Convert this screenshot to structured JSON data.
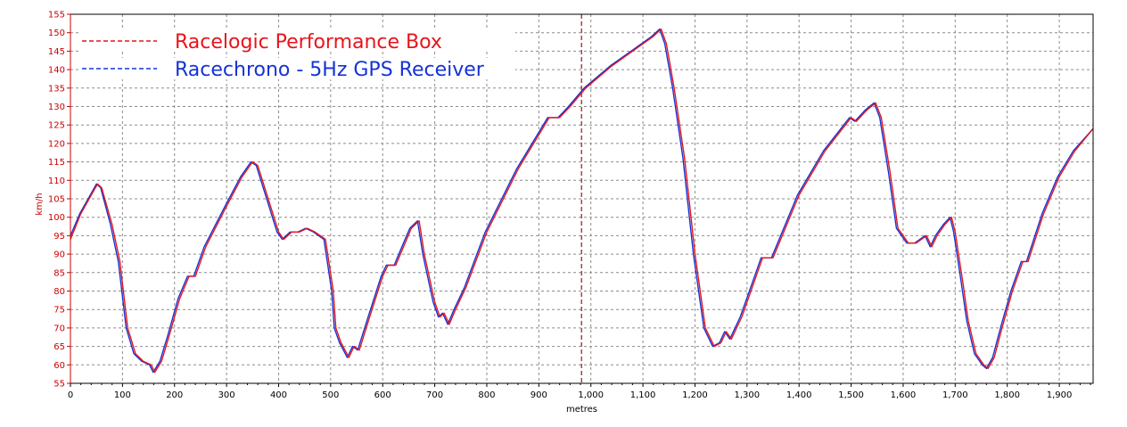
{
  "colors": {
    "red": "#e8141c",
    "blue": "#1533d6",
    "grid": "#8c8c8c",
    "y_axis": "#cc0000",
    "marker": "#8b1a1a",
    "frame": "#000000"
  },
  "chart_data": {
    "type": "line",
    "xlabel": "metres",
    "ylabel": "km/h",
    "xlim": [
      0,
      1965
    ],
    "ylim": [
      55,
      155
    ],
    "x_ticks": [
      0,
      100,
      200,
      300,
      400,
      500,
      600,
      700,
      800,
      900,
      1000,
      1100,
      1200,
      1300,
      1400,
      1500,
      1600,
      1700,
      1800,
      1900
    ],
    "x_tick_labels": [
      "0",
      "100",
      "200",
      "300",
      "400",
      "500",
      "600",
      "700",
      "800",
      "900",
      "1,000",
      "1,100",
      "1,200",
      "1,300",
      "1,400",
      "1,500",
      "1,600",
      "1,700",
      "1,800",
      "1,900"
    ],
    "y_ticks": [
      55,
      60,
      65,
      70,
      75,
      80,
      85,
      90,
      95,
      100,
      105,
      110,
      115,
      120,
      125,
      130,
      135,
      140,
      145,
      150,
      155
    ],
    "grid": true,
    "legend_position": "top-left",
    "marker_x": 982,
    "series": [
      {
        "name": "Racelogic Performance Box",
        "color": "#e8141c",
        "style": "dashed",
        "points": [
          [
            0,
            94
          ],
          [
            20,
            101
          ],
          [
            40,
            106
          ],
          [
            52,
            109
          ],
          [
            60,
            108
          ],
          [
            80,
            98
          ],
          [
            95,
            88
          ],
          [
            110,
            70
          ],
          [
            125,
            63
          ],
          [
            140,
            61
          ],
          [
            155,
            60
          ],
          [
            162,
            58
          ],
          [
            175,
            61
          ],
          [
            190,
            68
          ],
          [
            210,
            78
          ],
          [
            228,
            84
          ],
          [
            240,
            84
          ],
          [
            260,
            92
          ],
          [
            300,
            103
          ],
          [
            330,
            111
          ],
          [
            350,
            115
          ],
          [
            360,
            114
          ],
          [
            380,
            105
          ],
          [
            400,
            96
          ],
          [
            410,
            94
          ],
          [
            425,
            96
          ],
          [
            440,
            96
          ],
          [
            455,
            97
          ],
          [
            470,
            96
          ],
          [
            490,
            94
          ],
          [
            505,
            80
          ],
          [
            510,
            70
          ],
          [
            520,
            66
          ],
          [
            535,
            62
          ],
          [
            545,
            65
          ],
          [
            555,
            64
          ],
          [
            575,
            73
          ],
          [
            600,
            84
          ],
          [
            610,
            87
          ],
          [
            625,
            87
          ],
          [
            640,
            92
          ],
          [
            655,
            97
          ],
          [
            670,
            99
          ],
          [
            680,
            90
          ],
          [
            700,
            77
          ],
          [
            710,
            73
          ],
          [
            718,
            74
          ],
          [
            728,
            71
          ],
          [
            740,
            75
          ],
          [
            760,
            81
          ],
          [
            800,
            96
          ],
          [
            860,
            113
          ],
          [
            920,
            127
          ],
          [
            940,
            127
          ],
          [
            960,
            130
          ],
          [
            990,
            135
          ],
          [
            1040,
            141
          ],
          [
            1080,
            145
          ],
          [
            1120,
            149
          ],
          [
            1135,
            151
          ],
          [
            1145,
            147
          ],
          [
            1160,
            135
          ],
          [
            1180,
            116
          ],
          [
            1200,
            90
          ],
          [
            1220,
            70
          ],
          [
            1237,
            65
          ],
          [
            1250,
            66
          ],
          [
            1260,
            69
          ],
          [
            1270,
            67
          ],
          [
            1290,
            73
          ],
          [
            1320,
            85
          ],
          [
            1330,
            89
          ],
          [
            1350,
            89
          ],
          [
            1400,
            106
          ],
          [
            1450,
            118
          ],
          [
            1500,
            127
          ],
          [
            1510,
            126
          ],
          [
            1530,
            129
          ],
          [
            1547,
            131
          ],
          [
            1558,
            127
          ],
          [
            1575,
            112
          ],
          [
            1590,
            97
          ],
          [
            1610,
            93
          ],
          [
            1625,
            93
          ],
          [
            1645,
            95
          ],
          [
            1655,
            92
          ],
          [
            1665,
            95
          ],
          [
            1680,
            98
          ],
          [
            1693,
            100
          ],
          [
            1700,
            96
          ],
          [
            1715,
            82
          ],
          [
            1725,
            72
          ],
          [
            1740,
            63
          ],
          [
            1755,
            60
          ],
          [
            1763,
            59
          ],
          [
            1775,
            62
          ],
          [
            1790,
            70
          ],
          [
            1810,
            80
          ],
          [
            1830,
            88
          ],
          [
            1840,
            88
          ],
          [
            1870,
            101
          ],
          [
            1900,
            111
          ],
          [
            1930,
            118
          ],
          [
            1965,
            124
          ]
        ]
      },
      {
        "name": "Racechrono - 5Hz GPS Receiver",
        "color": "#1533d6",
        "style": "dashed",
        "points": [
          [
            0,
            95
          ],
          [
            18,
            101
          ],
          [
            38,
            106
          ],
          [
            50,
            109
          ],
          [
            58,
            108
          ],
          [
            77,
            98
          ],
          [
            92,
            88
          ],
          [
            107,
            70
          ],
          [
            122,
            63
          ],
          [
            137,
            61
          ],
          [
            152,
            60
          ],
          [
            159,
            58
          ],
          [
            172,
            61
          ],
          [
            187,
            68
          ],
          [
            207,
            78
          ],
          [
            225,
            84
          ],
          [
            237,
            84
          ],
          [
            257,
            92
          ],
          [
            297,
            103
          ],
          [
            327,
            111
          ],
          [
            347,
            115
          ],
          [
            357,
            114
          ],
          [
            377,
            105
          ],
          [
            397,
            96
          ],
          [
            407,
            94
          ],
          [
            422,
            96
          ],
          [
            437,
            96
          ],
          [
            452,
            97
          ],
          [
            467,
            96
          ],
          [
            487,
            94
          ],
          [
            502,
            80
          ],
          [
            507,
            70
          ],
          [
            517,
            66
          ],
          [
            532,
            62
          ],
          [
            542,
            65
          ],
          [
            552,
            64
          ],
          [
            572,
            73
          ],
          [
            597,
            84
          ],
          [
            607,
            87
          ],
          [
            622,
            87
          ],
          [
            637,
            92
          ],
          [
            652,
            97
          ],
          [
            667,
            99
          ],
          [
            677,
            90
          ],
          [
            697,
            77
          ],
          [
            707,
            73
          ],
          [
            715,
            74
          ],
          [
            725,
            71
          ],
          [
            737,
            75
          ],
          [
            757,
            81
          ],
          [
            797,
            96
          ],
          [
            857,
            113
          ],
          [
            917,
            127
          ],
          [
            937,
            127
          ],
          [
            957,
            130
          ],
          [
            987,
            135
          ],
          [
            1037,
            141
          ],
          [
            1077,
            145
          ],
          [
            1117,
            149
          ],
          [
            1132,
            151
          ],
          [
            1142,
            147
          ],
          [
            1157,
            135
          ],
          [
            1177,
            116
          ],
          [
            1197,
            90
          ],
          [
            1217,
            70
          ],
          [
            1234,
            65
          ],
          [
            1247,
            66
          ],
          [
            1257,
            69
          ],
          [
            1267,
            67
          ],
          [
            1287,
            73
          ],
          [
            1317,
            85
          ],
          [
            1327,
            89
          ],
          [
            1347,
            89
          ],
          [
            1397,
            106
          ],
          [
            1447,
            118
          ],
          [
            1497,
            127
          ],
          [
            1507,
            126
          ],
          [
            1527,
            129
          ],
          [
            1544,
            131
          ],
          [
            1555,
            127
          ],
          [
            1572,
            112
          ],
          [
            1587,
            97
          ],
          [
            1607,
            93
          ],
          [
            1622,
            93
          ],
          [
            1642,
            95
          ],
          [
            1652,
            92
          ],
          [
            1662,
            95
          ],
          [
            1677,
            98
          ],
          [
            1690,
            100
          ],
          [
            1697,
            96
          ],
          [
            1712,
            82
          ],
          [
            1722,
            72
          ],
          [
            1737,
            63
          ],
          [
            1752,
            60
          ],
          [
            1760,
            59
          ],
          [
            1772,
            62
          ],
          [
            1787,
            70
          ],
          [
            1807,
            80
          ],
          [
            1827,
            88
          ],
          [
            1837,
            88
          ],
          [
            1867,
            101
          ],
          [
            1897,
            111
          ],
          [
            1927,
            118
          ],
          [
            1965,
            124
          ]
        ]
      }
    ]
  }
}
